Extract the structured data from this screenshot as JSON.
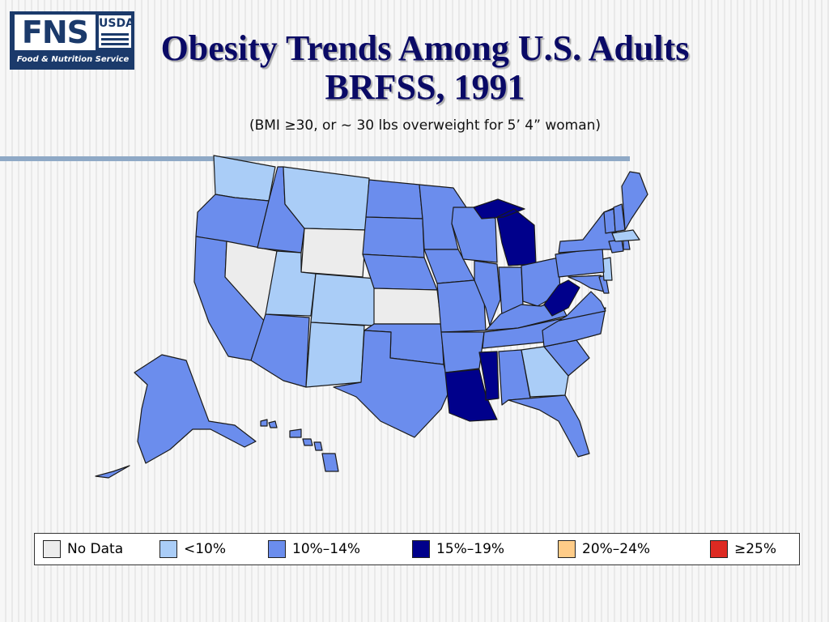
{
  "logo": {
    "primary": "FNS",
    "secondary": "USDA",
    "tagline": "Food & Nutrition Service"
  },
  "title_lines": [
    "Obesity Trends Among U.S. Adults",
    "BRFSS, 1991"
  ],
  "subtitle": "(BMI ≥30, or ~ 30 lbs overweight for 5’ 4” woman)",
  "colors": {
    "no_data": "#ececec",
    "lt10": "#aacdf7",
    "b10_14": "#6b8ded",
    "b15_19": "#00008b",
    "b20_24": "#ffcc88",
    "ge25": "#dd2a22"
  },
  "legend": [
    {
      "key": "no_data",
      "label": "No Data"
    },
    {
      "key": "lt10",
      "label": "<10%"
    },
    {
      "key": "b10_14",
      "label": "10%–14%"
    },
    {
      "key": "b15_19",
      "label": "15%–19%"
    },
    {
      "key": "b20_24",
      "label": "20%–24%"
    },
    {
      "key": "ge25",
      "label": "≥25%"
    }
  ],
  "map_data": {
    "category_by_state": {
      "WA": "lt10",
      "OR": "b10_14",
      "CA": "b10_14",
      "NV": "no_data",
      "ID": "b10_14",
      "MT": "lt10",
      "WY": "no_data",
      "UT": "lt10",
      "CO": "lt10",
      "AZ": "b10_14",
      "NM": "lt10",
      "ND": "b10_14",
      "SD": "b10_14",
      "NE": "b10_14",
      "KS": "no_data",
      "OK": "b10_14",
      "TX": "b10_14",
      "MN": "b10_14",
      "IA": "b10_14",
      "MO": "b10_14",
      "AR": "b10_14",
      "LA": "b15_19",
      "WI": "b10_14",
      "IL": "b10_14",
      "MI": "b15_19",
      "IN": "b10_14",
      "OH": "b10_14",
      "KY": "b10_14",
      "TN": "b10_14",
      "MS": "b15_19",
      "AL": "b10_14",
      "GA": "lt10",
      "FL": "b10_14",
      "SC": "b10_14",
      "NC": "b10_14",
      "VA": "b10_14",
      "WV": "b15_19",
      "MD": "b10_14",
      "DE": "b10_14",
      "NJ": "lt10",
      "PA": "b10_14",
      "NY": "b10_14",
      "CT": "b10_14",
      "RI": "b10_14",
      "MA": "lt10",
      "VT": "b10_14",
      "NH": "b10_14",
      "ME": "b10_14",
      "AK": "b10_14",
      "HI": "b10_14"
    }
  }
}
